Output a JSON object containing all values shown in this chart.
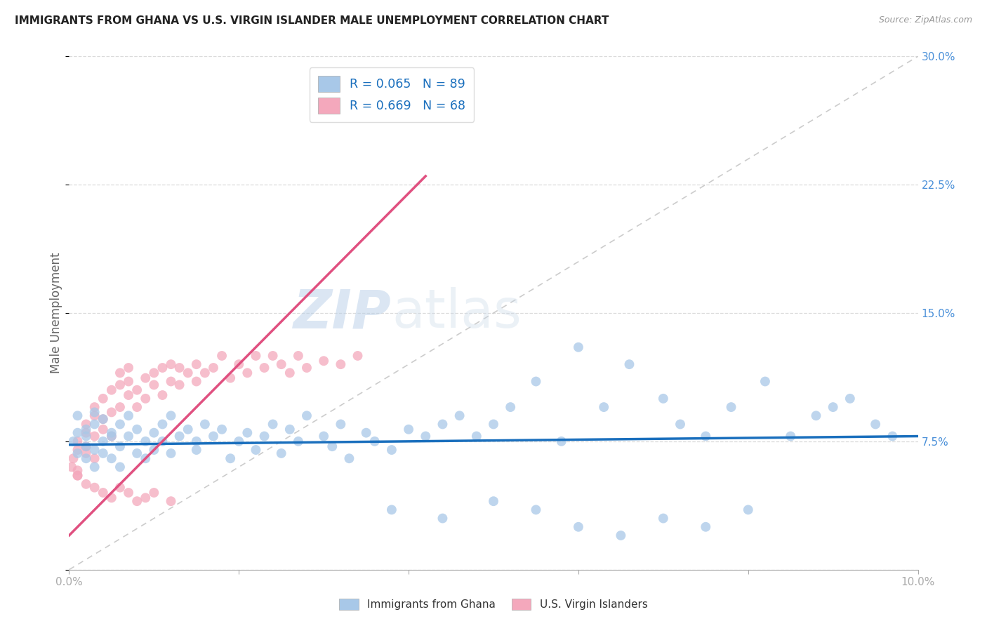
{
  "title": "IMMIGRANTS FROM GHANA VS U.S. VIRGIN ISLANDER MALE UNEMPLOYMENT CORRELATION CHART",
  "source": "Source: ZipAtlas.com",
  "ylabel": "Male Unemployment",
  "xlim": [
    0.0,
    0.1
  ],
  "ylim": [
    0.0,
    0.3
  ],
  "ghana_color": "#a8c8e8",
  "virgin_color": "#f4a8bc",
  "ghana_line_color": "#1a6fbd",
  "virgin_line_color": "#e05080",
  "diag_line_color": "#cccccc",
  "R_ghana": 0.065,
  "N_ghana": 89,
  "R_virgin": 0.669,
  "N_virgin": 68,
  "watermark_zip": "ZIP",
  "watermark_atlas": "atlas",
  "ghana_scatter_x": [
    0.0005,
    0.001,
    0.001,
    0.001,
    0.002,
    0.002,
    0.002,
    0.002,
    0.003,
    0.003,
    0.003,
    0.003,
    0.004,
    0.004,
    0.004,
    0.005,
    0.005,
    0.005,
    0.006,
    0.006,
    0.006,
    0.007,
    0.007,
    0.008,
    0.008,
    0.009,
    0.009,
    0.01,
    0.01,
    0.011,
    0.011,
    0.012,
    0.012,
    0.013,
    0.014,
    0.015,
    0.015,
    0.016,
    0.017,
    0.018,
    0.019,
    0.02,
    0.021,
    0.022,
    0.023,
    0.024,
    0.025,
    0.026,
    0.027,
    0.028,
    0.03,
    0.031,
    0.032,
    0.033,
    0.035,
    0.036,
    0.038,
    0.04,
    0.042,
    0.044,
    0.046,
    0.048,
    0.05,
    0.052,
    0.055,
    0.058,
    0.06,
    0.063,
    0.066,
    0.07,
    0.072,
    0.075,
    0.078,
    0.082,
    0.085,
    0.088,
    0.09,
    0.092,
    0.095,
    0.097,
    0.038,
    0.044,
    0.05,
    0.055,
    0.06,
    0.065,
    0.07,
    0.075,
    0.08
  ],
  "ghana_scatter_y": [
    0.075,
    0.08,
    0.068,
    0.09,
    0.072,
    0.082,
    0.065,
    0.078,
    0.07,
    0.085,
    0.06,
    0.092,
    0.075,
    0.068,
    0.088,
    0.08,
    0.065,
    0.078,
    0.072,
    0.085,
    0.06,
    0.078,
    0.09,
    0.068,
    0.082,
    0.075,
    0.065,
    0.08,
    0.07,
    0.085,
    0.075,
    0.068,
    0.09,
    0.078,
    0.082,
    0.07,
    0.075,
    0.085,
    0.078,
    0.082,
    0.065,
    0.075,
    0.08,
    0.07,
    0.078,
    0.085,
    0.068,
    0.082,
    0.075,
    0.09,
    0.078,
    0.072,
    0.085,
    0.065,
    0.08,
    0.075,
    0.07,
    0.082,
    0.078,
    0.085,
    0.09,
    0.078,
    0.085,
    0.095,
    0.11,
    0.075,
    0.13,
    0.095,
    0.12,
    0.1,
    0.085,
    0.078,
    0.095,
    0.11,
    0.078,
    0.09,
    0.095,
    0.1,
    0.085,
    0.078,
    0.035,
    0.03,
    0.04,
    0.035,
    0.025,
    0.02,
    0.03,
    0.025,
    0.035
  ],
  "virgin_scatter_x": [
    0.0003,
    0.0005,
    0.001,
    0.001,
    0.001,
    0.001,
    0.002,
    0.002,
    0.002,
    0.002,
    0.003,
    0.003,
    0.003,
    0.003,
    0.004,
    0.004,
    0.004,
    0.005,
    0.005,
    0.005,
    0.006,
    0.006,
    0.006,
    0.007,
    0.007,
    0.007,
    0.008,
    0.008,
    0.009,
    0.009,
    0.01,
    0.01,
    0.011,
    0.011,
    0.012,
    0.012,
    0.013,
    0.013,
    0.014,
    0.015,
    0.015,
    0.016,
    0.017,
    0.018,
    0.019,
    0.02,
    0.021,
    0.022,
    0.023,
    0.024,
    0.025,
    0.026,
    0.027,
    0.028,
    0.03,
    0.032,
    0.034,
    0.001,
    0.002,
    0.003,
    0.004,
    0.005,
    0.006,
    0.007,
    0.008,
    0.009,
    0.01,
    0.012
  ],
  "virgin_scatter_y": [
    0.06,
    0.065,
    0.058,
    0.07,
    0.075,
    0.055,
    0.08,
    0.068,
    0.085,
    0.072,
    0.078,
    0.09,
    0.065,
    0.095,
    0.082,
    0.088,
    0.1,
    0.092,
    0.105,
    0.078,
    0.108,
    0.095,
    0.115,
    0.11,
    0.102,
    0.118,
    0.095,
    0.105,
    0.112,
    0.1,
    0.108,
    0.115,
    0.102,
    0.118,
    0.11,
    0.12,
    0.108,
    0.118,
    0.115,
    0.12,
    0.11,
    0.115,
    0.118,
    0.125,
    0.112,
    0.12,
    0.115,
    0.125,
    0.118,
    0.125,
    0.12,
    0.115,
    0.125,
    0.118,
    0.122,
    0.12,
    0.125,
    0.055,
    0.05,
    0.048,
    0.045,
    0.042,
    0.048,
    0.045,
    0.04,
    0.042,
    0.045,
    0.04
  ]
}
